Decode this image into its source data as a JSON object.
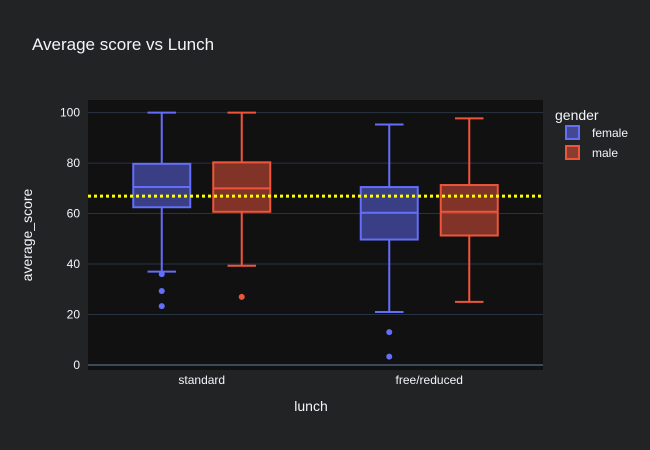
{
  "chart_data": {
    "type": "box",
    "title": "Average score vs Lunch",
    "xlabel": "lunch",
    "ylabel": "average_score",
    "categories": [
      "standard",
      "free/reduced"
    ],
    "ylim": [
      -2,
      105
    ],
    "yticks": [
      0,
      20,
      40,
      60,
      80,
      100
    ],
    "grid": true,
    "legend": {
      "title": "gender",
      "placement": "right"
    },
    "reference_line": {
      "y": 66.9,
      "color": "#ffff00",
      "style": "dotted"
    },
    "series": [
      {
        "name": "female",
        "color": "#636efa",
        "boxes": [
          {
            "category": "standard",
            "lower_fence": 37,
            "q1": 62.5,
            "median": 70.5,
            "q3": 79.7,
            "upper_fence": 100,
            "outliers": [
              36,
              29.3,
              23.3
            ]
          },
          {
            "category": "free/reduced",
            "lower_fence": 21,
            "q1": 49.7,
            "median": 60.3,
            "q3": 70.5,
            "upper_fence": 95.3,
            "outliers": [
              13,
              3.3
            ]
          }
        ]
      },
      {
        "name": "male",
        "color": "#ef553b",
        "boxes": [
          {
            "category": "standard",
            "lower_fence": 39.3,
            "q1": 60.7,
            "median": 70,
            "q3": 80.3,
            "upper_fence": 100,
            "outliers": [
              27
            ]
          },
          {
            "category": "free/reduced",
            "lower_fence": 25,
            "q1": 51.3,
            "median": 60.7,
            "q3": 71.3,
            "upper_fence": 97.7,
            "outliers": []
          }
        ]
      }
    ]
  }
}
